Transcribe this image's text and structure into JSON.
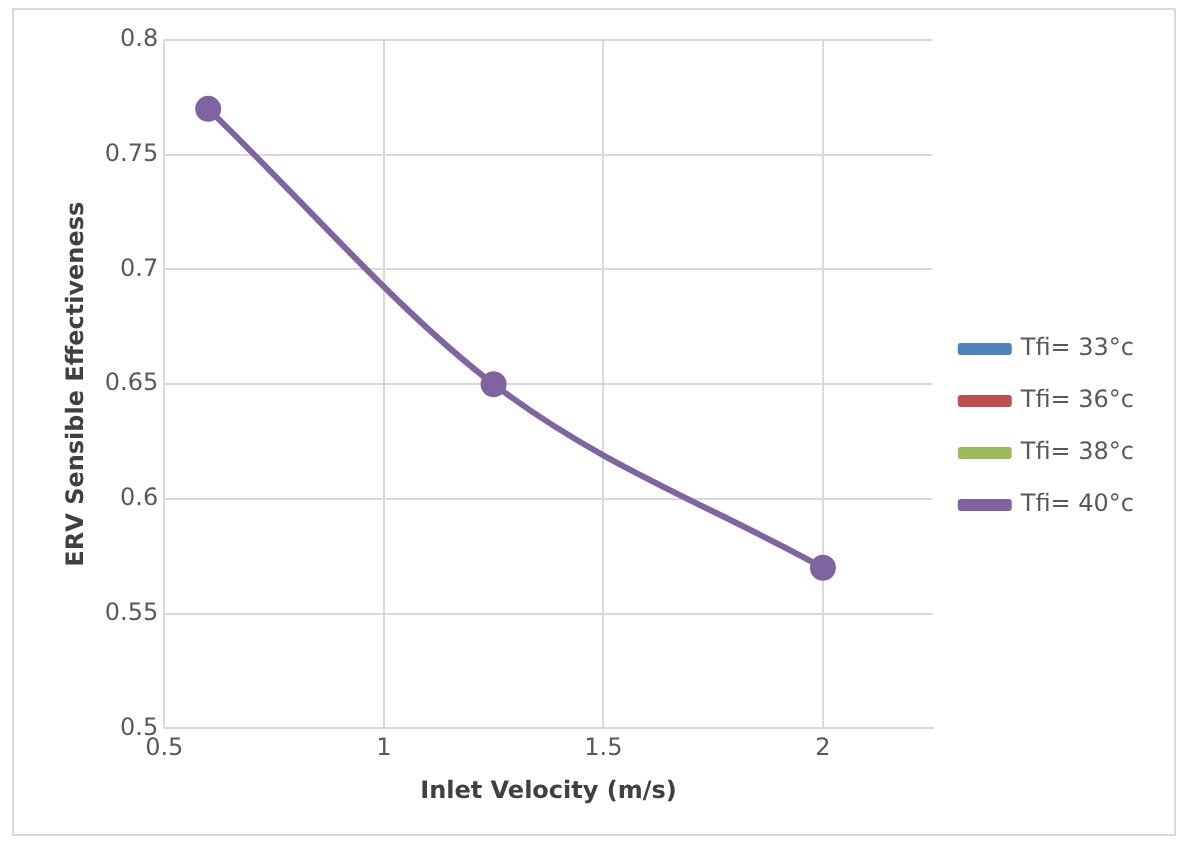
{
  "chart_data": {
    "type": "line",
    "xlabel": "Inlet Velocity (m/s)",
    "ylabel": "ERV Sensible Effectiveness",
    "x": [
      0.6,
      1.25,
      2
    ],
    "series": [
      {
        "name": "Tfi= 33°c",
        "color": "#4f81bd",
        "values": [
          null,
          null,
          null
        ]
      },
      {
        "name": "Tfi= 36°c",
        "color": "#c0504d",
        "values": [
          null,
          null,
          null
        ]
      },
      {
        "name": "Tfi= 38°c",
        "color": "#9bbb59",
        "values": [
          null,
          null,
          null
        ]
      },
      {
        "name": "Tfi= 40°c",
        "color": "#8064a2",
        "values": [
          0.77,
          0.65,
          0.57
        ]
      }
    ],
    "xlim": [
      0.5,
      2.25
    ],
    "xticks": [
      0.5,
      1,
      1.5,
      2
    ],
    "ylim": [
      0.5,
      0.8
    ],
    "yticks": [
      0.5,
      0.55,
      0.6,
      0.65,
      0.7,
      0.75,
      0.8
    ],
    "grid": true,
    "legend": "right",
    "marker": "circle",
    "line_style": "solid"
  }
}
